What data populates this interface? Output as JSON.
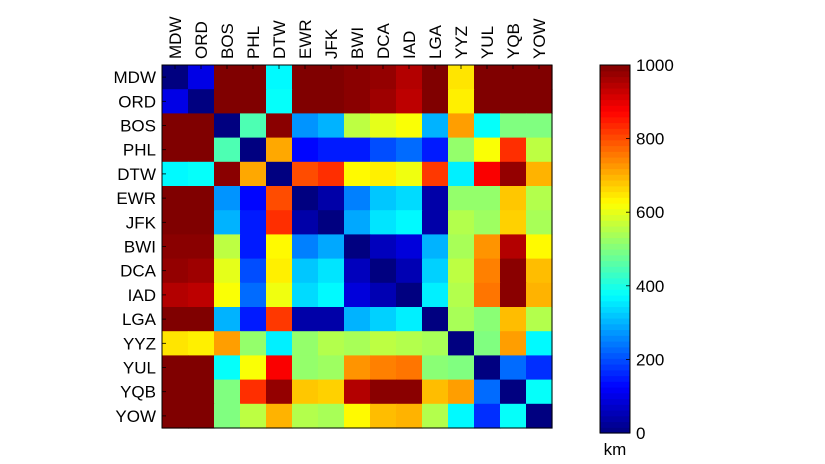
{
  "chart_data": {
    "type": "heatmap",
    "title": "",
    "labels": [
      "MDW",
      "ORD",
      "BOS",
      "PHL",
      "DTW",
      "EWR",
      "JFK",
      "BWI",
      "DCA",
      "IAD",
      "LGA",
      "YYZ",
      "YUL",
      "YQB",
      "YOW"
    ],
    "values": [
      [
        0,
        100,
        1000,
        1000,
        370,
        1000,
        1000,
        990,
        980,
        950,
        1000,
        650,
        1000,
        1000,
        1000
      ],
      [
        100,
        0,
        1000,
        1000,
        380,
        1000,
        1000,
        990,
        970,
        940,
        1000,
        640,
        1000,
        1000,
        1000
      ],
      [
        1000,
        1000,
        0,
        450,
        990,
        270,
        300,
        560,
        600,
        620,
        300,
        720,
        380,
        500,
        500
      ],
      [
        1000,
        1000,
        450,
        0,
        710,
        130,
        150,
        150,
        200,
        230,
        150,
        520,
        620,
        830,
        560
      ],
      [
        370,
        380,
        990,
        710,
        0,
        800,
        830,
        630,
        640,
        610,
        820,
        360,
        880,
        980,
        700
      ],
      [
        1000,
        1000,
        270,
        130,
        800,
        0,
        40,
        250,
        320,
        340,
        40,
        520,
        520,
        680,
        550
      ],
      [
        1000,
        1000,
        300,
        150,
        830,
        40,
        0,
        290,
        350,
        370,
        40,
        550,
        530,
        670,
        540
      ],
      [
        990,
        990,
        560,
        150,
        630,
        250,
        290,
        0,
        60,
        90,
        300,
        540,
        730,
        950,
        630
      ],
      [
        980,
        970,
        600,
        200,
        640,
        320,
        350,
        60,
        0,
        50,
        330,
        560,
        750,
        990,
        690
      ],
      [
        950,
        940,
        620,
        230,
        610,
        340,
        370,
        90,
        50,
        0,
        360,
        550,
        760,
        990,
        700
      ],
      [
        1000,
        1000,
        300,
        150,
        820,
        40,
        40,
        300,
        330,
        360,
        0,
        540,
        510,
        690,
        550
      ],
      [
        650,
        640,
        720,
        520,
        360,
        520,
        550,
        540,
        560,
        550,
        540,
        0,
        500,
        720,
        370
      ],
      [
        1000,
        1000,
        380,
        620,
        880,
        520,
        530,
        730,
        750,
        760,
        510,
        500,
        0,
        230,
        170
      ],
      [
        1000,
        1000,
        500,
        830,
        980,
        680,
        670,
        950,
        990,
        990,
        690,
        720,
        230,
        0,
        380
      ],
      [
        1000,
        1000,
        500,
        560,
        700,
        550,
        540,
        630,
        690,
        700,
        550,
        370,
        170,
        380,
        0
      ]
    ],
    "colorbar": {
      "ticks": [
        0,
        200,
        400,
        600,
        800,
        1000
      ],
      "min": 0,
      "max": 1000,
      "label": "km",
      "colormap": "jet"
    }
  }
}
